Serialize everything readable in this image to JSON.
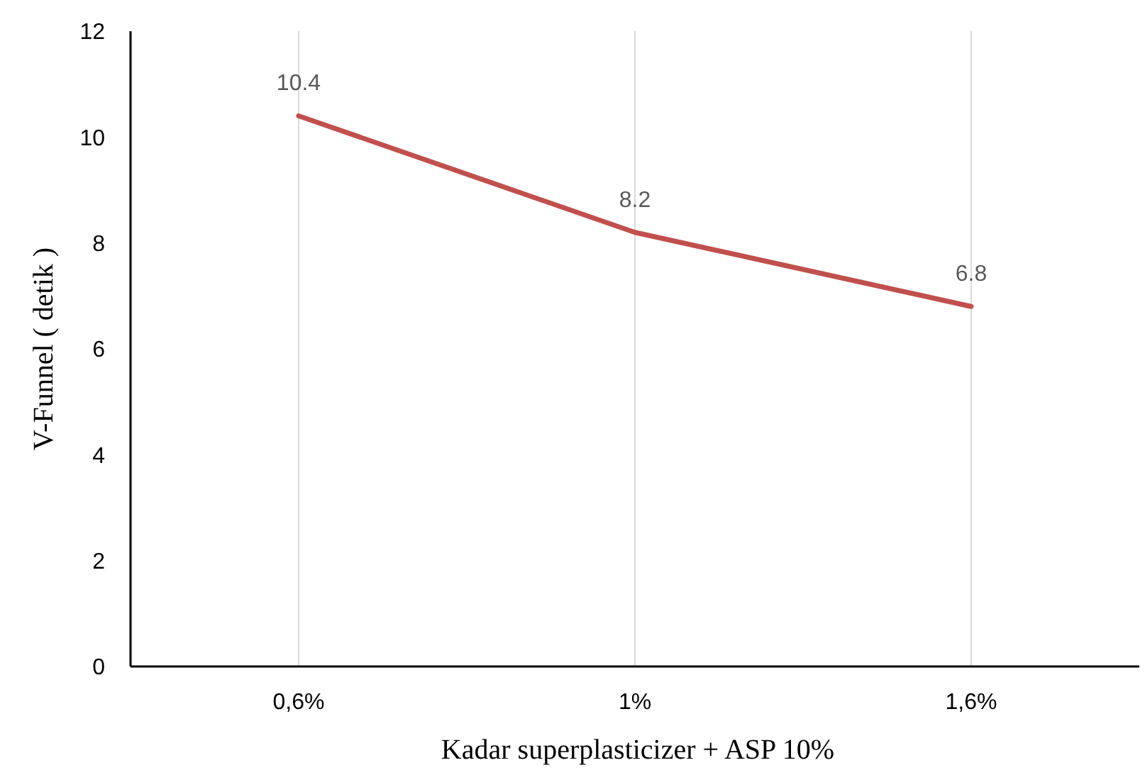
{
  "chart_data": {
    "type": "line",
    "xlabel": "Kadar superplasticizer  +  ASP 10%",
    "ylabel": "V-Funnel   ( detik )",
    "categories": [
      "0,6%",
      "1%",
      "1,6%"
    ],
    "series": [
      {
        "color": "#c0504d",
        "values": [
          10.4,
          8.2,
          6.8
        ]
      }
    ],
    "ylim": [
      0,
      12
    ],
    "yticks": [
      0,
      2,
      4,
      6,
      8,
      10,
      12
    ],
    "grid": "x",
    "data_labels": true,
    "marker": "none",
    "line_style": "solid"
  }
}
